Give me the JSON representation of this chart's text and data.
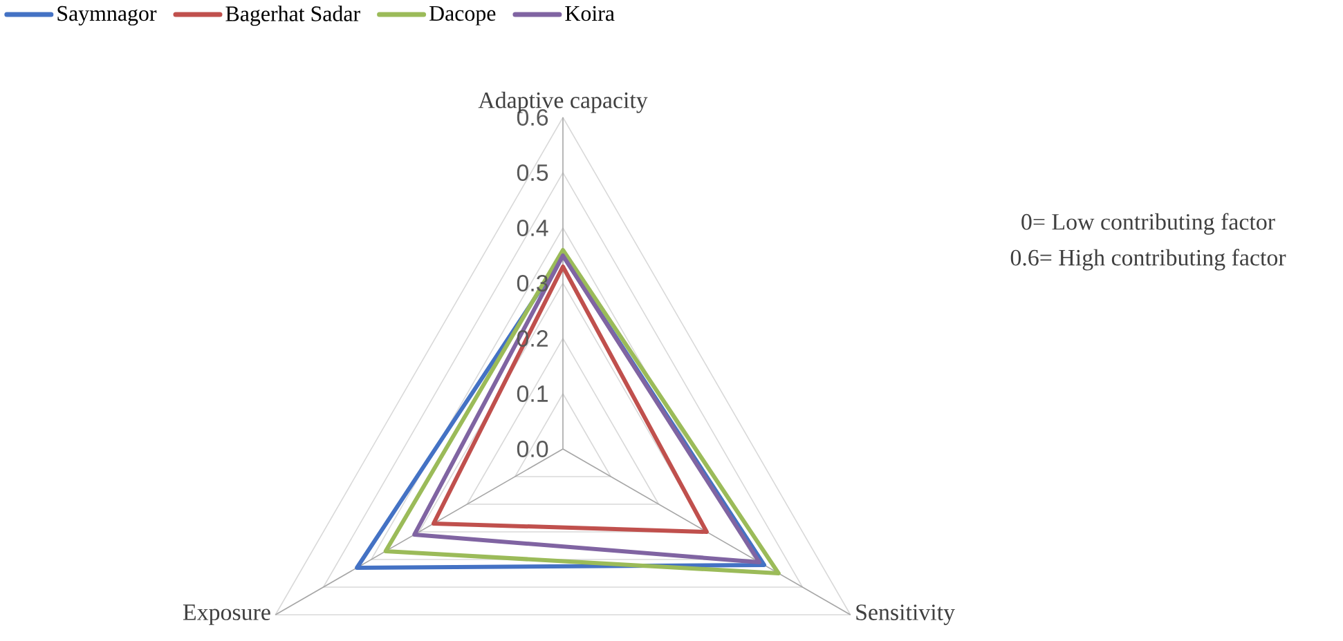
{
  "chart_data": {
    "type": "radar",
    "categories": [
      "Adaptive capacity",
      "Sensitivity",
      "Exposure"
    ],
    "series": [
      {
        "name": "Saymnagor",
        "color": "#4472c4",
        "values": [
          0.35,
          0.42,
          0.43
        ]
      },
      {
        "name": "Bagerhat Sadar",
        "color": "#c0504d",
        "values": [
          0.33,
          0.3,
          0.27
        ]
      },
      {
        "name": "Dacope",
        "color": "#9bbb59",
        "values": [
          0.36,
          0.45,
          0.37
        ]
      },
      {
        "name": "Koira",
        "color": "#8064a2",
        "values": [
          0.35,
          0.41,
          0.31
        ]
      }
    ],
    "ylim": [
      0,
      0.6
    ],
    "yticks": [
      {
        "value": 0,
        "label": "0.0"
      },
      0.1,
      0.2,
      0.3,
      0.4,
      0.5,
      0.6
    ],
    "grid": true,
    "legend": "top left",
    "annotations": [
      "0= Low contributing factor",
      "0.6= High contributing factor"
    ]
  }
}
